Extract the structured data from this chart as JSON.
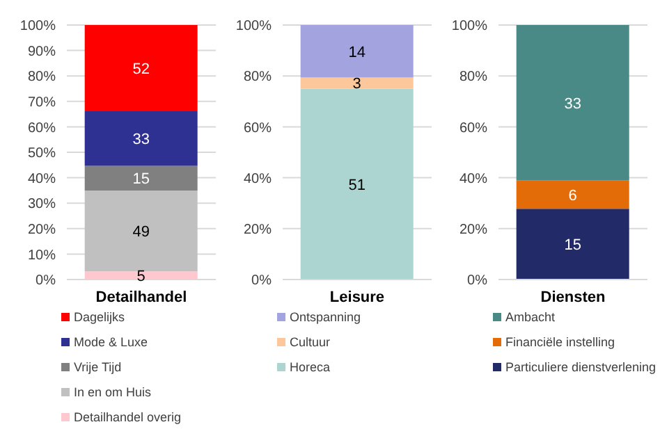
{
  "chart_data": [
    {
      "type": "bar",
      "stacked": true,
      "categories": [
        "Detailhandel"
      ],
      "ylim": [
        0,
        100
      ],
      "yticks": [
        {
          "value": 0,
          "label": "0%"
        },
        {
          "value": 10,
          "label": "10%"
        },
        {
          "value": 20,
          "label": "20%"
        },
        {
          "value": 30,
          "label": "30%"
        },
        {
          "value": 40,
          "label": "40%"
        },
        {
          "value": 50,
          "label": "50%"
        },
        {
          "value": 60,
          "label": "60%"
        },
        {
          "value": 70,
          "label": "70%"
        },
        {
          "value": 80,
          "label": "80%"
        },
        {
          "value": 90,
          "label": "90%"
        },
        {
          "value": 100,
          "label": "100%"
        }
      ],
      "grid": "y",
      "legend": "bottom",
      "series": [
        {
          "name": "Detailhandel overig",
          "color": "#ffc7ce",
          "values": [
            3.2
          ]
        },
        {
          "name": "In en om Huis",
          "color": "#c0c0c0",
          "values": [
            31.8
          ]
        },
        {
          "name": "Vrije Tijd",
          "color": "#808080",
          "values": [
            9.7
          ]
        },
        {
          "name": "Mode & Luxe",
          "color": "#2e3192",
          "values": [
            21.4
          ]
        },
        {
          "name": "Dagelijks",
          "color": "#ff0000",
          "values": [
            33.9
          ]
        }
      ],
      "annotations": [
        "5",
        "49",
        "15",
        "33",
        "52"
      ]
    },
    {
      "type": "bar",
      "stacked": true,
      "categories": [
        "Leisure"
      ],
      "ylim": [
        0,
        100
      ],
      "yticks": [
        {
          "value": 0,
          "label": "0%"
        },
        {
          "value": 20,
          "label": "20%"
        },
        {
          "value": 40,
          "label": "40%"
        },
        {
          "value": 60,
          "label": "60%"
        },
        {
          "value": 80,
          "label": "80%"
        },
        {
          "value": 100,
          "label": "100%"
        }
      ],
      "grid": "y",
      "legend": "bottom",
      "series": [
        {
          "name": "Horeca",
          "color": "#acd5d2",
          "values": [
            75.0
          ]
        },
        {
          "name": "Cultuur",
          "color": "#fcc89b",
          "values": [
            4.4
          ]
        },
        {
          "name": "Ontspanning",
          "color": "#a3a3e0",
          "values": [
            20.6
          ]
        }
      ],
      "annotations": [
        "51",
        "3",
        "14"
      ]
    },
    {
      "type": "bar",
      "stacked": true,
      "categories": [
        "Diensten"
      ],
      "ylim": [
        0,
        100
      ],
      "yticks": [
        {
          "value": 0,
          "label": "0%"
        },
        {
          "value": 20,
          "label": "20%"
        },
        {
          "value": 40,
          "label": "40%"
        },
        {
          "value": 60,
          "label": "60%"
        },
        {
          "value": 80,
          "label": "80%"
        },
        {
          "value": 100,
          "label": "100%"
        }
      ],
      "grid": "y",
      "legend": "bottom",
      "series": [
        {
          "name": "Particuliere dienstverlening",
          "color": "#222a68",
          "values": [
            27.8
          ]
        },
        {
          "name": "Financiële instelling",
          "color": "#e36c09",
          "values": [
            11.1
          ]
        },
        {
          "name": "Ambacht",
          "color": "#4a8a86",
          "values": [
            61.1
          ]
        }
      ],
      "annotations": [
        "15",
        "6",
        "33"
      ]
    }
  ]
}
